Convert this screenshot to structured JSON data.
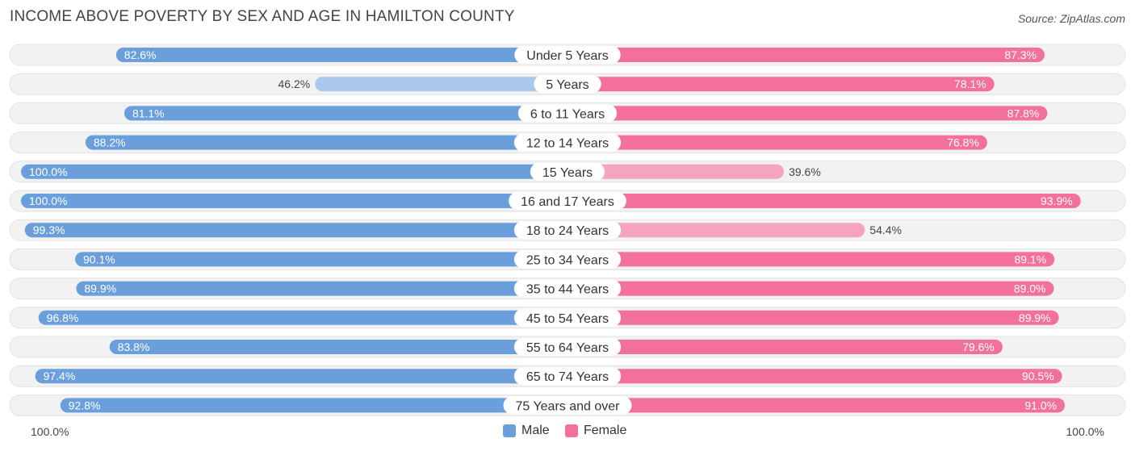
{
  "header": {
    "title": "INCOME ABOVE POVERTY BY SEX AND AGE IN HAMILTON COUNTY",
    "source": "Source: ZipAtlas.com"
  },
  "colors": {
    "male_strong": "#6a9fdc",
    "male_light": "#a9c8ec",
    "female_strong": "#f27099",
    "female_light": "#f6a3bd",
    "track": "#efefef"
  },
  "legend": {
    "male": "Male",
    "female": "Female"
  },
  "axis": {
    "left_label": "100.0%",
    "right_label": "100.0%"
  },
  "chart_data": {
    "type": "bar",
    "orientation": "horizontal-diverging",
    "title": "INCOME ABOVE POVERTY BY SEX AND AGE IN HAMILTON COUNTY",
    "xlim": [
      0,
      100
    ],
    "categories": [
      "Under 5 Years",
      "5 Years",
      "6 to 11 Years",
      "12 to 14 Years",
      "15 Years",
      "16 and 17 Years",
      "18 to 24 Years",
      "25 to 34 Years",
      "35 to 44 Years",
      "45 to 54 Years",
      "55 to 64 Years",
      "65 to 74 Years",
      "75 Years and over"
    ],
    "series": [
      {
        "name": "Male",
        "side": "left",
        "values": [
          82.6,
          46.2,
          81.1,
          88.2,
          100.0,
          100.0,
          99.3,
          90.1,
          89.9,
          96.8,
          83.8,
          97.4,
          92.8
        ],
        "labels": [
          "82.6%",
          "46.2%",
          "81.1%",
          "88.2%",
          "100.0%",
          "100.0%",
          "99.3%",
          "90.1%",
          "89.9%",
          "96.8%",
          "83.8%",
          "97.4%",
          "92.8%"
        ]
      },
      {
        "name": "Female",
        "side": "right",
        "values": [
          87.3,
          78.1,
          87.8,
          76.8,
          39.6,
          93.9,
          54.4,
          89.1,
          89.0,
          89.9,
          79.6,
          90.5,
          91.0
        ],
        "labels": [
          "87.3%",
          "78.1%",
          "87.8%",
          "76.8%",
          "39.6%",
          "93.9%",
          "54.4%",
          "89.1%",
          "89.0%",
          "89.9%",
          "79.6%",
          "90.5%",
          "91.0%"
        ]
      }
    ]
  }
}
